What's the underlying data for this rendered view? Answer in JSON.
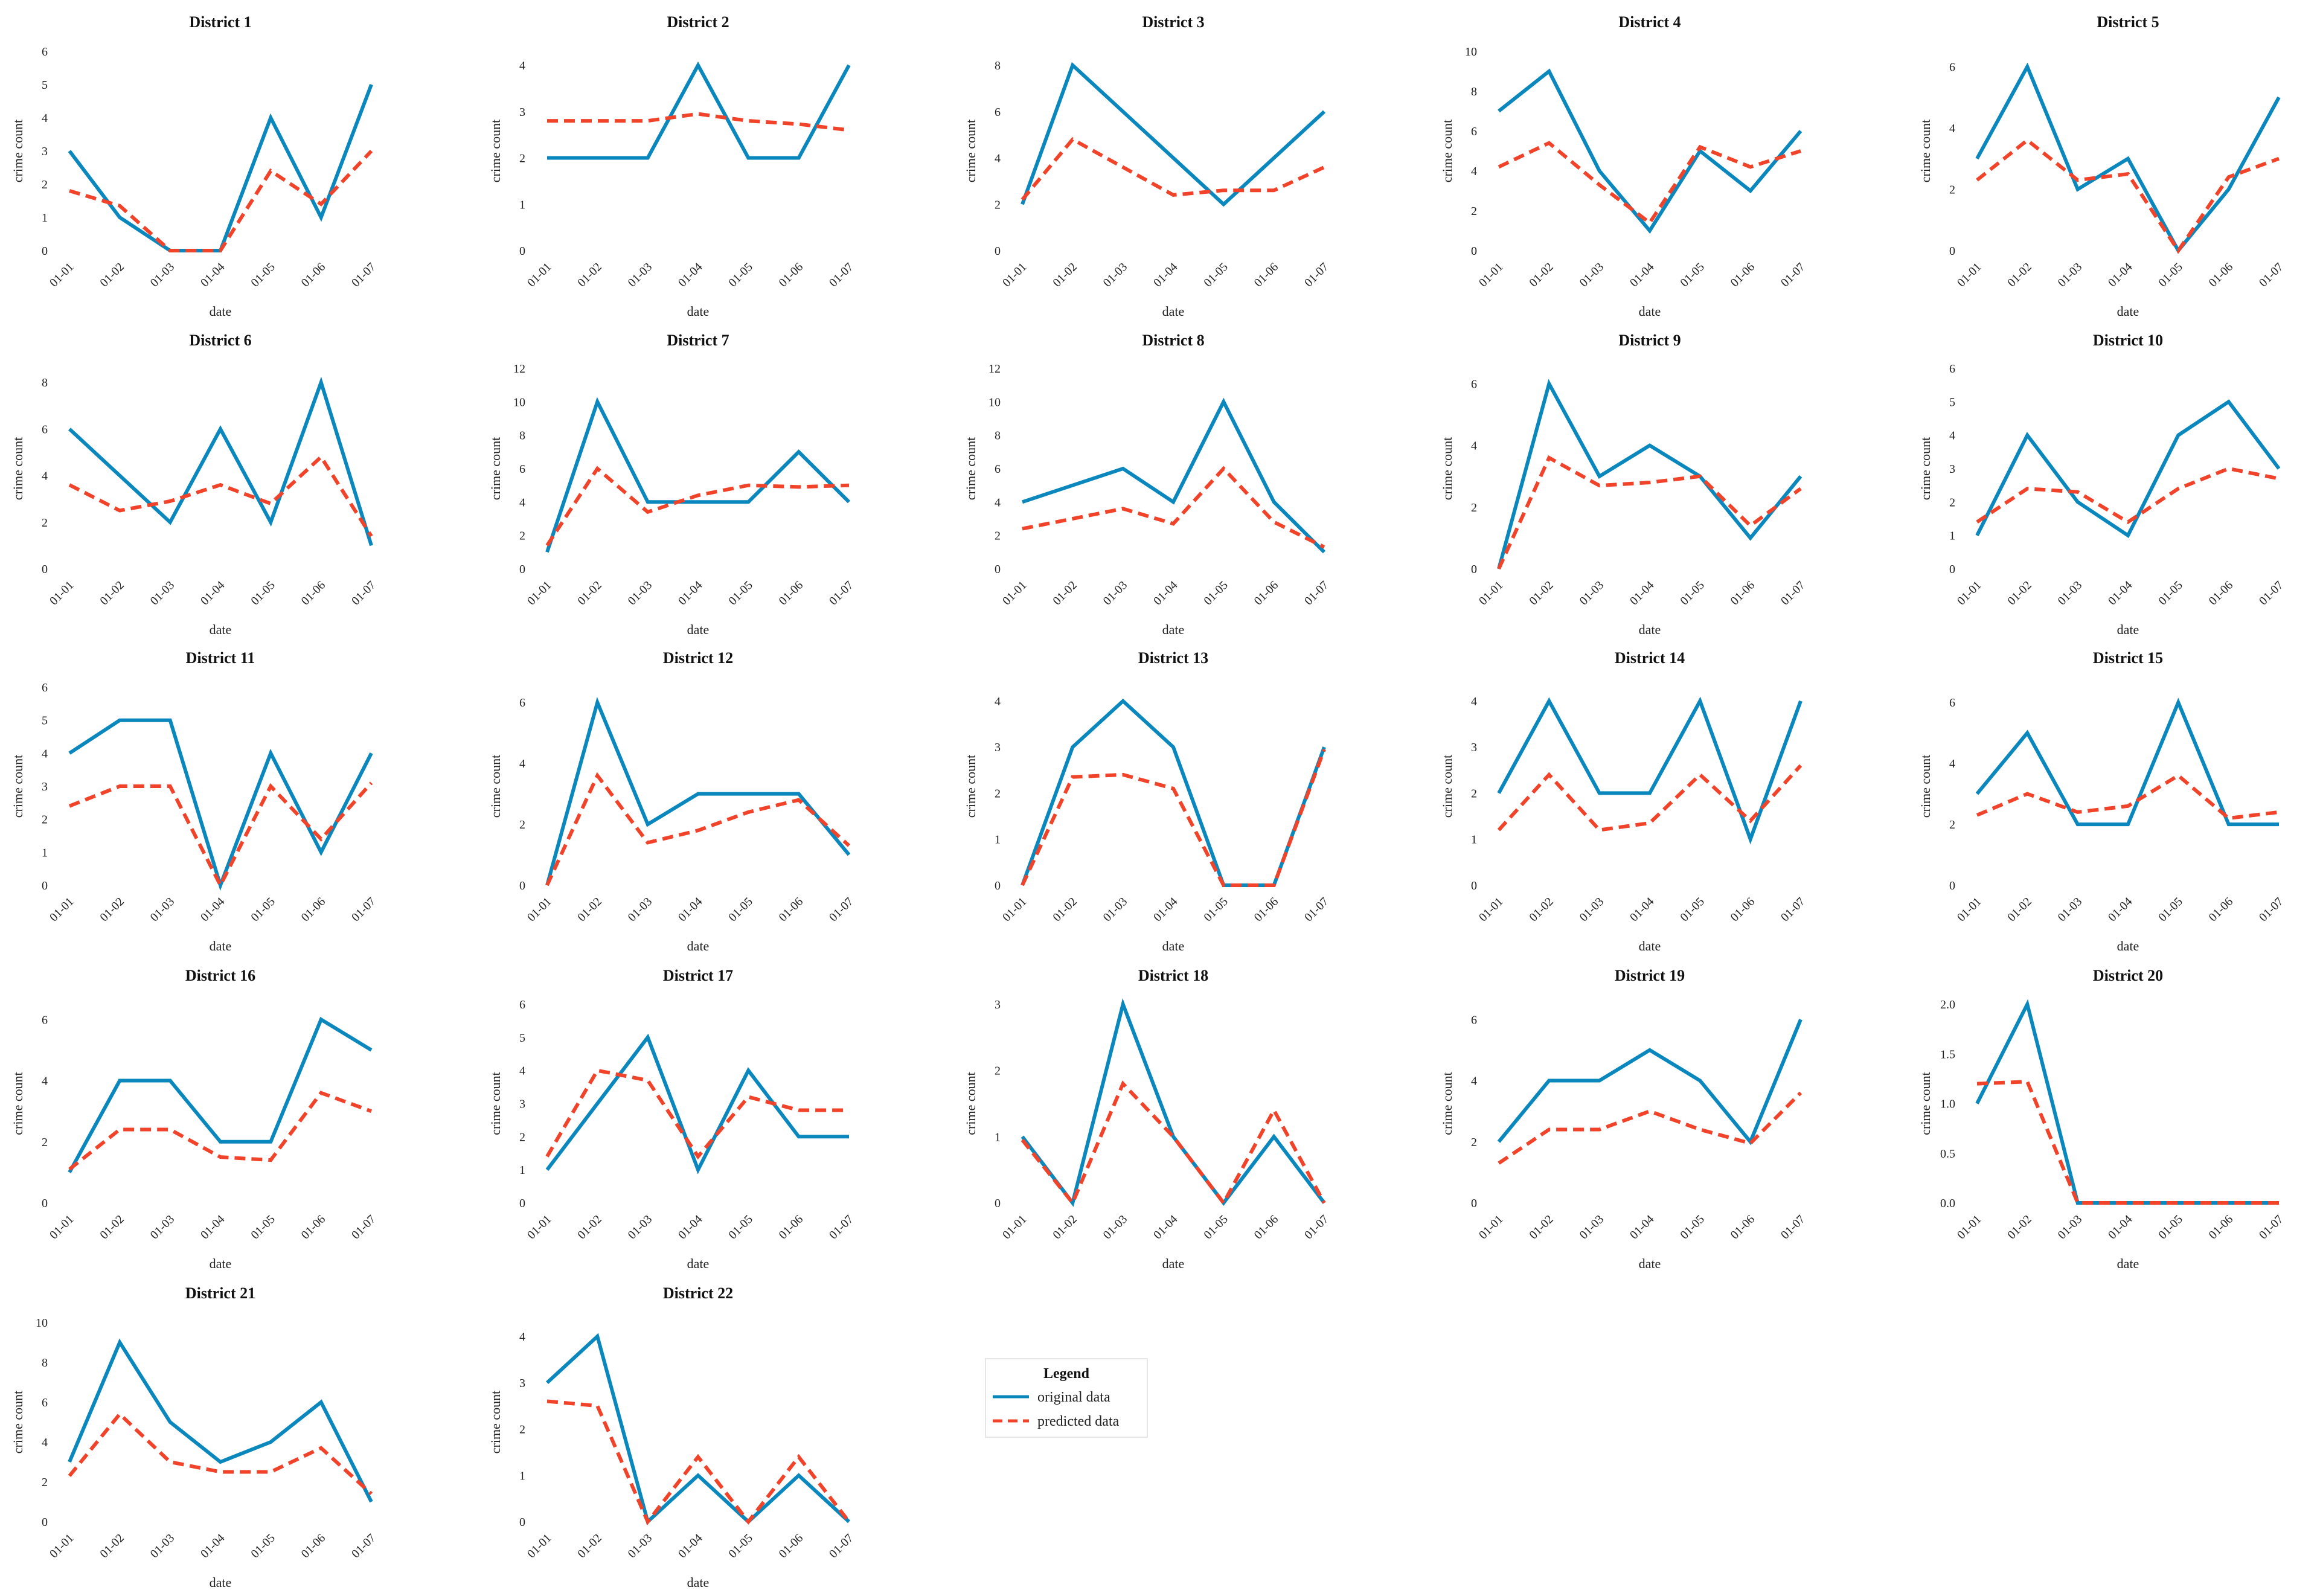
{
  "colors": {
    "original": "#0a87bd",
    "predicted": "#f0432a"
  },
  "legend": {
    "title": "Legend",
    "original_label": "original data",
    "predicted_label": "predicted data"
  },
  "chart_data": [
    {
      "type": "line",
      "title": "District 1",
      "xlabel": "date",
      "ylabel": "crime count",
      "categories": [
        "01-01",
        "01-02",
        "01-03",
        "01-04",
        "01-05",
        "01-06",
        "01-07"
      ],
      "yticks": [
        "0",
        "1",
        "2",
        "3",
        "4",
        "5",
        "6"
      ],
      "ylim": [
        0,
        6
      ],
      "series": [
        {
          "name": "original data",
          "values": [
            3,
            1,
            0,
            0,
            4,
            1,
            5
          ]
        },
        {
          "name": "predicted data",
          "values": [
            1.8,
            1.35,
            0,
            0,
            2.4,
            1.4,
            3.0
          ]
        }
      ]
    },
    {
      "type": "line",
      "title": "District 2",
      "xlabel": "date",
      "ylabel": "crime count",
      "categories": [
        "01-01",
        "01-02",
        "01-03",
        "01-04",
        "01-05",
        "01-06",
        "01-07"
      ],
      "yticks": [
        "0",
        "1",
        "2",
        "3",
        "4"
      ],
      "ylim": [
        0,
        4.3
      ],
      "series": [
        {
          "name": "original data",
          "values": [
            2,
            2,
            2,
            4,
            2,
            2,
            4
          ]
        },
        {
          "name": "predicted data",
          "values": [
            2.8,
            2.8,
            2.8,
            2.95,
            2.8,
            2.73,
            2.6
          ]
        }
      ]
    },
    {
      "type": "line",
      "title": "District 3",
      "xlabel": "date",
      "ylabel": "crime count",
      "categories": [
        "01-01",
        "01-02",
        "01-03",
        "01-04",
        "01-05",
        "01-06",
        "01-07"
      ],
      "yticks": [
        "0",
        "2",
        "4",
        "6",
        "8"
      ],
      "ylim": [
        0,
        8.6
      ],
      "series": [
        {
          "name": "original data",
          "values": [
            2,
            8,
            6,
            4,
            2,
            4,
            6
          ]
        },
        {
          "name": "predicted data",
          "values": [
            2.2,
            4.8,
            3.6,
            2.4,
            2.6,
            2.6,
            3.6
          ]
        }
      ]
    },
    {
      "type": "line",
      "title": "District 4",
      "xlabel": "date",
      "ylabel": "crime count",
      "categories": [
        "01-01",
        "01-02",
        "01-03",
        "01-04",
        "01-05",
        "01-06",
        "01-07"
      ],
      "yticks": [
        "0",
        "2",
        "4",
        "6",
        "8",
        "10"
      ],
      "ylim": [
        0,
        10
      ],
      "series": [
        {
          "name": "original data",
          "values": [
            7,
            9,
            4,
            1,
            5,
            3,
            6
          ]
        },
        {
          "name": "predicted data",
          "values": [
            4.2,
            5.4,
            3.3,
            1.4,
            5.2,
            4.2,
            5.0
          ]
        }
      ]
    },
    {
      "type": "line",
      "title": "District 5",
      "xlabel": "date",
      "ylabel": "crime count",
      "categories": [
        "01-01",
        "01-02",
        "01-03",
        "01-04",
        "01-05",
        "01-06",
        "01-07"
      ],
      "yticks": [
        "0",
        "2",
        "4",
        "6"
      ],
      "ylim": [
        0,
        6.5
      ],
      "series": [
        {
          "name": "original data",
          "values": [
            3,
            6,
            2,
            3,
            0,
            2,
            5
          ]
        },
        {
          "name": "predicted data",
          "values": [
            2.3,
            3.6,
            2.3,
            2.5,
            0,
            2.4,
            3.0
          ]
        }
      ]
    },
    {
      "type": "line",
      "title": "District 6",
      "xlabel": "date",
      "ylabel": "crime count",
      "categories": [
        "01-01",
        "01-02",
        "01-03",
        "01-04",
        "01-05",
        "01-06",
        "01-07"
      ],
      "yticks": [
        "0",
        "2",
        "4",
        "6",
        "8"
      ],
      "ylim": [
        0,
        8.6
      ],
      "series": [
        {
          "name": "original data",
          "values": [
            6,
            4,
            2,
            6,
            2,
            8,
            1
          ]
        },
        {
          "name": "predicted data",
          "values": [
            3.6,
            2.5,
            2.9,
            3.6,
            2.8,
            4.8,
            1.4
          ]
        }
      ]
    },
    {
      "type": "line",
      "title": "District 7",
      "xlabel": "date",
      "ylabel": "crime count",
      "categories": [
        "01-01",
        "01-02",
        "01-03",
        "01-04",
        "01-05",
        "01-06",
        "01-07"
      ],
      "yticks": [
        "0",
        "2",
        "4",
        "6",
        "8",
        "10",
        "12"
      ],
      "ylim": [
        0,
        12
      ],
      "series": [
        {
          "name": "original data",
          "values": [
            1,
            10,
            4,
            4,
            4,
            7,
            4
          ]
        },
        {
          "name": "predicted data",
          "values": [
            1.4,
            6.0,
            3.4,
            4.4,
            5.0,
            4.9,
            5.0
          ]
        }
      ]
    },
    {
      "type": "line",
      "title": "District 8",
      "xlabel": "date",
      "ylabel": "crime count",
      "categories": [
        "01-01",
        "01-02",
        "01-03",
        "01-04",
        "01-05",
        "01-06",
        "01-07"
      ],
      "yticks": [
        "0",
        "2",
        "4",
        "6",
        "8",
        "10",
        "12"
      ],
      "ylim": [
        0,
        12
      ],
      "series": [
        {
          "name": "original data",
          "values": [
            4,
            5,
            6,
            4,
            10,
            4,
            1
          ]
        },
        {
          "name": "predicted data",
          "values": [
            2.4,
            3.0,
            3.6,
            2.7,
            6.0,
            2.8,
            1.3
          ]
        }
      ]
    },
    {
      "type": "line",
      "title": "District 9",
      "xlabel": "date",
      "ylabel": "crime count",
      "categories": [
        "01-01",
        "01-02",
        "01-03",
        "01-04",
        "01-05",
        "01-06",
        "01-07"
      ],
      "yticks": [
        "0",
        "2",
        "4",
        "6"
      ],
      "ylim": [
        0,
        6.5
      ],
      "series": [
        {
          "name": "original data",
          "values": [
            0,
            6,
            3,
            4,
            3,
            1,
            3
          ]
        },
        {
          "name": "predicted data",
          "values": [
            0,
            3.6,
            2.7,
            2.8,
            3.0,
            1.4,
            2.6
          ]
        }
      ]
    },
    {
      "type": "line",
      "title": "District 10",
      "xlabel": "date",
      "ylabel": "crime count",
      "categories": [
        "01-01",
        "01-02",
        "01-03",
        "01-04",
        "01-05",
        "01-06",
        "01-07"
      ],
      "yticks": [
        "0",
        "1",
        "2",
        "3",
        "4",
        "5",
        "6"
      ],
      "ylim": [
        0,
        6
      ],
      "series": [
        {
          "name": "original data",
          "values": [
            1,
            4,
            2,
            1,
            4,
            5,
            3
          ]
        },
        {
          "name": "predicted data",
          "values": [
            1.4,
            2.4,
            2.3,
            1.4,
            2.4,
            3.0,
            2.7
          ]
        }
      ]
    },
    {
      "type": "line",
      "title": "District 11",
      "xlabel": "date",
      "ylabel": "crime count",
      "categories": [
        "01-01",
        "01-02",
        "01-03",
        "01-04",
        "01-05",
        "01-06",
        "01-07"
      ],
      "yticks": [
        "0",
        "1",
        "2",
        "3",
        "4",
        "5",
        "6"
      ],
      "ylim": [
        0,
        6
      ],
      "series": [
        {
          "name": "original data",
          "values": [
            4,
            5,
            5,
            0,
            4,
            1,
            4
          ]
        },
        {
          "name": "predicted data",
          "values": [
            2.4,
            3.0,
            3.0,
            0,
            3.0,
            1.4,
            3.1
          ]
        }
      ]
    },
    {
      "type": "line",
      "title": "District 12",
      "xlabel": "date",
      "ylabel": "crime count",
      "categories": [
        "01-01",
        "01-02",
        "01-03",
        "01-04",
        "01-05",
        "01-06",
        "01-07"
      ],
      "yticks": [
        "0",
        "2",
        "4",
        "6"
      ],
      "ylim": [
        0,
        6.5
      ],
      "series": [
        {
          "name": "original data",
          "values": [
            0,
            6,
            2,
            3,
            3,
            3,
            1
          ]
        },
        {
          "name": "predicted data",
          "values": [
            0,
            3.6,
            1.4,
            1.8,
            2.4,
            2.8,
            1.3
          ]
        }
      ]
    },
    {
      "type": "line",
      "title": "District 13",
      "xlabel": "date",
      "ylabel": "crime count",
      "categories": [
        "01-01",
        "01-02",
        "01-03",
        "01-04",
        "01-05",
        "01-06",
        "01-07"
      ],
      "yticks": [
        "0",
        "1",
        "2",
        "3",
        "4"
      ],
      "ylim": [
        0,
        4.3
      ],
      "series": [
        {
          "name": "original data",
          "values": [
            0,
            3,
            4,
            3,
            0,
            0,
            3
          ]
        },
        {
          "name": "predicted data",
          "values": [
            0,
            2.35,
            2.4,
            2.1,
            0,
            0,
            2.95
          ]
        }
      ]
    },
    {
      "type": "line",
      "title": "District 14",
      "xlabel": "date",
      "ylabel": "crime count",
      "categories": [
        "01-01",
        "01-02",
        "01-03",
        "01-04",
        "01-05",
        "01-06",
        "01-07"
      ],
      "yticks": [
        "0",
        "1",
        "2",
        "3",
        "4"
      ],
      "ylim": [
        0,
        4.3
      ],
      "series": [
        {
          "name": "original data",
          "values": [
            2,
            4,
            2,
            2,
            4,
            1,
            4
          ]
        },
        {
          "name": "predicted data",
          "values": [
            1.2,
            2.4,
            1.2,
            1.35,
            2.4,
            1.4,
            2.6
          ]
        }
      ]
    },
    {
      "type": "line",
      "title": "District 15",
      "xlabel": "date",
      "ylabel": "crime count",
      "categories": [
        "01-01",
        "01-02",
        "01-03",
        "01-04",
        "01-05",
        "01-06",
        "01-07"
      ],
      "yticks": [
        "0",
        "2",
        "4",
        "6"
      ],
      "ylim": [
        0,
        6.5
      ],
      "series": [
        {
          "name": "original data",
          "values": [
            3,
            5,
            2,
            2,
            6,
            2,
            2
          ]
        },
        {
          "name": "predicted data",
          "values": [
            2.3,
            3.0,
            2.4,
            2.6,
            3.6,
            2.2,
            2.4
          ]
        }
      ]
    },
    {
      "type": "line",
      "title": "District 16",
      "xlabel": "date",
      "ylabel": "crime count",
      "categories": [
        "01-01",
        "01-02",
        "01-03",
        "01-04",
        "01-05",
        "01-06",
        "01-07"
      ],
      "yticks": [
        "0",
        "2",
        "4",
        "6"
      ],
      "ylim": [
        0,
        6.5
      ],
      "series": [
        {
          "name": "original data",
          "values": [
            1,
            4,
            4,
            2,
            2,
            6,
            5
          ]
        },
        {
          "name": "predicted data",
          "values": [
            1.1,
            2.4,
            2.4,
            1.5,
            1.4,
            3.6,
            3.0
          ]
        }
      ]
    },
    {
      "type": "line",
      "title": "District 17",
      "xlabel": "date",
      "ylabel": "crime count",
      "categories": [
        "01-01",
        "01-02",
        "01-03",
        "01-04",
        "01-05",
        "01-06",
        "01-07"
      ],
      "yticks": [
        "0",
        "1",
        "2",
        "3",
        "4",
        "5",
        "6"
      ],
      "ylim": [
        0,
        6
      ],
      "series": [
        {
          "name": "original data",
          "values": [
            1,
            3,
            5,
            1,
            4,
            2,
            2
          ]
        },
        {
          "name": "predicted data",
          "values": [
            1.4,
            4.0,
            3.7,
            1.4,
            3.2,
            2.8,
            2.8
          ]
        }
      ]
    },
    {
      "type": "line",
      "title": "District 18",
      "xlabel": "date",
      "ylabel": "crime count",
      "categories": [
        "01-01",
        "01-02",
        "01-03",
        "01-04",
        "01-05",
        "01-06",
        "01-07"
      ],
      "yticks": [
        "0",
        "1",
        "2",
        "3"
      ],
      "ylim": [
        0,
        3
      ],
      "series": [
        {
          "name": "original data",
          "values": [
            1,
            0,
            3,
            1,
            0,
            1,
            0
          ]
        },
        {
          "name": "predicted data",
          "values": [
            0.95,
            0,
            1.8,
            1.0,
            0,
            1.4,
            0
          ]
        }
      ]
    },
    {
      "type": "line",
      "title": "District 19",
      "xlabel": "date",
      "ylabel": "crime count",
      "categories": [
        "01-01",
        "01-02",
        "01-03",
        "01-04",
        "01-05",
        "01-06",
        "01-07"
      ],
      "yticks": [
        "0",
        "2",
        "4",
        "6"
      ],
      "ylim": [
        0,
        6.5
      ],
      "series": [
        {
          "name": "original data",
          "values": [
            2,
            4,
            4,
            5,
            4,
            2,
            6
          ]
        },
        {
          "name": "predicted data",
          "values": [
            1.3,
            2.4,
            2.4,
            3.0,
            2.4,
            1.95,
            3.6
          ]
        }
      ]
    },
    {
      "type": "line",
      "title": "District 20",
      "xlabel": "date",
      "ylabel": "crime count",
      "categories": [
        "01-01",
        "01-02",
        "01-03",
        "01-04",
        "01-05",
        "01-06",
        "01-07"
      ],
      "yticks": [
        "0.0",
        "0.5",
        "1.0",
        "1.5",
        "2.0"
      ],
      "ylim": [
        0,
        2.0
      ],
      "series": [
        {
          "name": "original data",
          "values": [
            1.0,
            2.0,
            0,
            0,
            0,
            0,
            0
          ]
        },
        {
          "name": "predicted data",
          "values": [
            1.2,
            1.22,
            0,
            0,
            0,
            0,
            0
          ]
        }
      ]
    },
    {
      "type": "line",
      "title": "District 21",
      "xlabel": "date",
      "ylabel": "crime count",
      "categories": [
        "01-01",
        "01-02",
        "01-03",
        "01-04",
        "01-05",
        "01-06",
        "01-07"
      ],
      "yticks": [
        "0",
        "2",
        "4",
        "6",
        "8",
        "10"
      ],
      "ylim": [
        0,
        10
      ],
      "series": [
        {
          "name": "original data",
          "values": [
            3,
            9,
            5,
            3,
            4,
            6,
            1
          ]
        },
        {
          "name": "predicted data",
          "values": [
            2.3,
            5.4,
            3.0,
            2.5,
            2.5,
            3.7,
            1.4
          ]
        }
      ]
    },
    {
      "type": "line",
      "title": "District 22",
      "xlabel": "date",
      "ylabel": "crime count",
      "categories": [
        "01-01",
        "01-02",
        "01-03",
        "01-04",
        "01-05",
        "01-06",
        "01-07"
      ],
      "yticks": [
        "0",
        "1",
        "2",
        "3",
        "4"
      ],
      "ylim": [
        0,
        4.3
      ],
      "series": [
        {
          "name": "original data",
          "values": [
            3,
            4,
            0,
            1,
            0,
            1,
            0
          ]
        },
        {
          "name": "predicted data",
          "values": [
            2.6,
            2.5,
            0,
            1.4,
            0,
            1.4,
            0
          ]
        }
      ]
    }
  ]
}
